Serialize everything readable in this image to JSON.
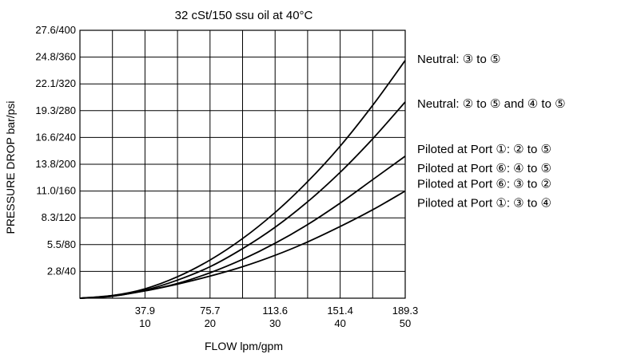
{
  "chart_data": {
    "type": "line",
    "title": "32 cSt/150 ssu oil at 40°C",
    "xlabel": "FLOW lpm/gpm",
    "ylabel": "PRESSURE DROP bar/psi",
    "xlim": [
      0,
      50
    ],
    "ylim": [
      0,
      400
    ],
    "x_ticks": [
      {
        "value": 10,
        "lpm": "37.9",
        "gpm": "10"
      },
      {
        "value": 20,
        "lpm": "75.7",
        "gpm": "20"
      },
      {
        "value": 30,
        "lpm": "113.6",
        "gpm": "30"
      },
      {
        "value": 40,
        "lpm": "151.4",
        "gpm": "40"
      },
      {
        "value": 50,
        "lpm": "189.3",
        "gpm": "50"
      }
    ],
    "y_ticks": [
      {
        "value": 40,
        "label": "2.8/40"
      },
      {
        "value": 80,
        "label": "5.5/80"
      },
      {
        "value": 120,
        "label": "8.3/120"
      },
      {
        "value": 160,
        "label": "11.0/160"
      },
      {
        "value": 200,
        "label": "13.8/200"
      },
      {
        "value": 240,
        "label": "16.6/240"
      },
      {
        "value": 280,
        "label": "19.3/280"
      },
      {
        "value": 320,
        "label": "22.1/320"
      },
      {
        "value": 360,
        "label": "24.8/360"
      },
      {
        "value": 400,
        "label": "27.6/400"
      }
    ],
    "grid": true,
    "series": [
      {
        "name": "Neutral: ③ to ⑤",
        "x": [
          0,
          5,
          10,
          15,
          20,
          25,
          30,
          35,
          40,
          45,
          50
        ],
        "y": [
          0,
          4,
          14,
          32,
          57,
          89,
          128,
          174,
          227,
          288,
          355
        ]
      },
      {
        "name": "Neutral: ② to ⑤ and ④ to ⑤",
        "x": [
          0,
          5,
          10,
          15,
          20,
          25,
          30,
          35,
          40,
          45,
          50
        ],
        "y": [
          0,
          3,
          12,
          27,
          47,
          74,
          106,
          144,
          188,
          238,
          293
        ]
      },
      {
        "name": "Piloted at Port ①: ② to ⑤\nPiloted at Port ⑥: ④ to ⑤",
        "x": [
          0,
          5,
          10,
          15,
          20,
          25,
          30,
          35,
          40,
          45,
          50
        ],
        "y": [
          0,
          3,
          11,
          22,
          38,
          58,
          82,
          110,
          142,
          177,
          212
        ]
      },
      {
        "name": "Piloted at Port ⑥: ③ to ②\nPiloted at Port ①: ③ to ④",
        "x": [
          0,
          5,
          10,
          15,
          20,
          25,
          30,
          35,
          40,
          45,
          50
        ],
        "y": [
          0,
          4,
          11,
          21,
          33,
          47,
          64,
          84,
          107,
          132,
          160
        ]
      }
    ],
    "labels": [
      {
        "series": 0,
        "lines": [
          "Neutral: ③ to ⑤"
        ]
      },
      {
        "series": 1,
        "lines": [
          "Neutral: ② to ⑤ and ④ to ⑤"
        ]
      },
      {
        "series": 2,
        "lines": [
          "Piloted at Port ①: ② to ⑤",
          "Piloted at Port ⑥: ④ to ⑤"
        ]
      },
      {
        "series": 3,
        "lines": [
          "Piloted at Port ⑥: ③ to ②",
          "Piloted at Port ①: ③ to ④"
        ]
      }
    ]
  }
}
